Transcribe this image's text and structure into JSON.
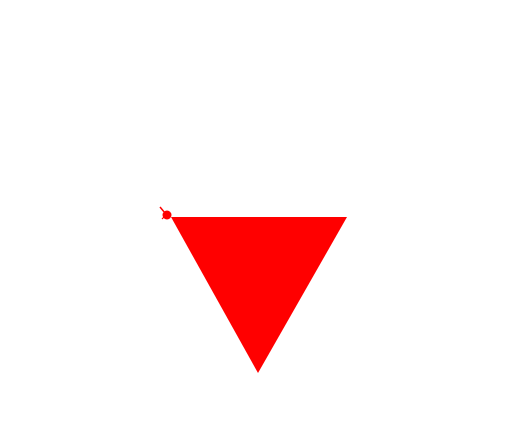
{
  "scene": {
    "background_color": "#ffffff",
    "shape_color": "#ff0000",
    "shapes": [
      {
        "kind": "triangle",
        "icon": "down-pointing-triangle"
      },
      {
        "kind": "dot",
        "icon": "small-marker-dot"
      }
    ]
  }
}
